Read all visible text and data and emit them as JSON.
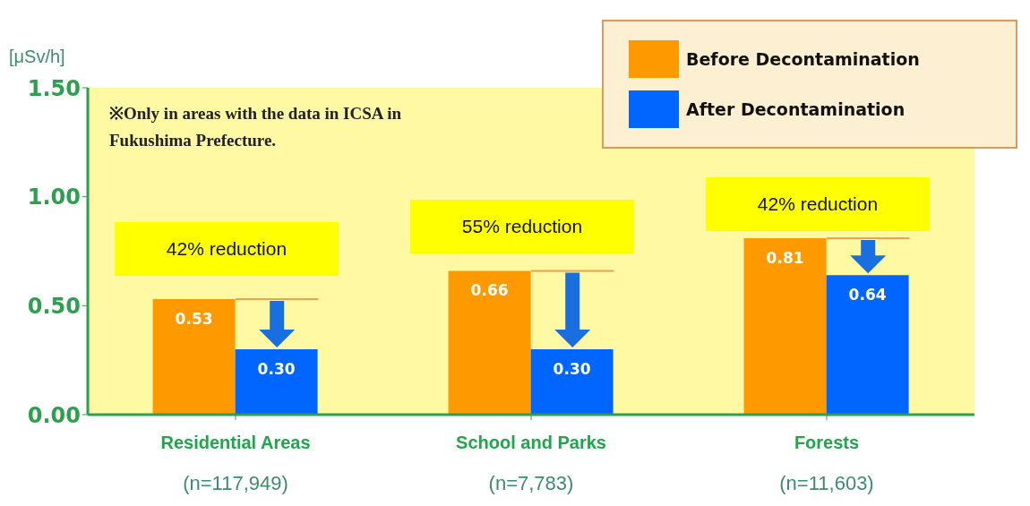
{
  "chart_data": {
    "type": "bar",
    "ylabel": "[μSv/h]",
    "categories": [
      "Residential Areas\n(n=117,949)",
      "School and Parks\n(n=7,783)",
      "Forests\n(n=11,603)"
    ],
    "series": [
      {
        "name": "Before Decontamination",
        "color": "#ff9900",
        "values": [
          0.53,
          0.66,
          0.81
        ],
        "value_labels": [
          "0.53",
          "0.66",
          "0.81"
        ]
      },
      {
        "name": "After Decontamination",
        "color": "#0066ff",
        "values": [
          0.3,
          0.3,
          0.64
        ],
        "value_labels": [
          "0.30",
          "0.30",
          "0.64"
        ]
      }
    ],
    "ylim": [
      0,
      1.5
    ],
    "yticks": [
      {
        "value": 0,
        "label": "0.00"
      },
      {
        "value": 0.5,
        "label": "0.50"
      },
      {
        "value": 1,
        "label": "1.00"
      },
      {
        "value": 1.5,
        "label": "1.50"
      }
    ],
    "legend": "top right",
    "annotations": [
      "※Only in areas with the data in ICSA in Fukushima Prefecture.",
      "42% reduction",
      "55% reduction",
      "42% reduction"
    ]
  }
}
